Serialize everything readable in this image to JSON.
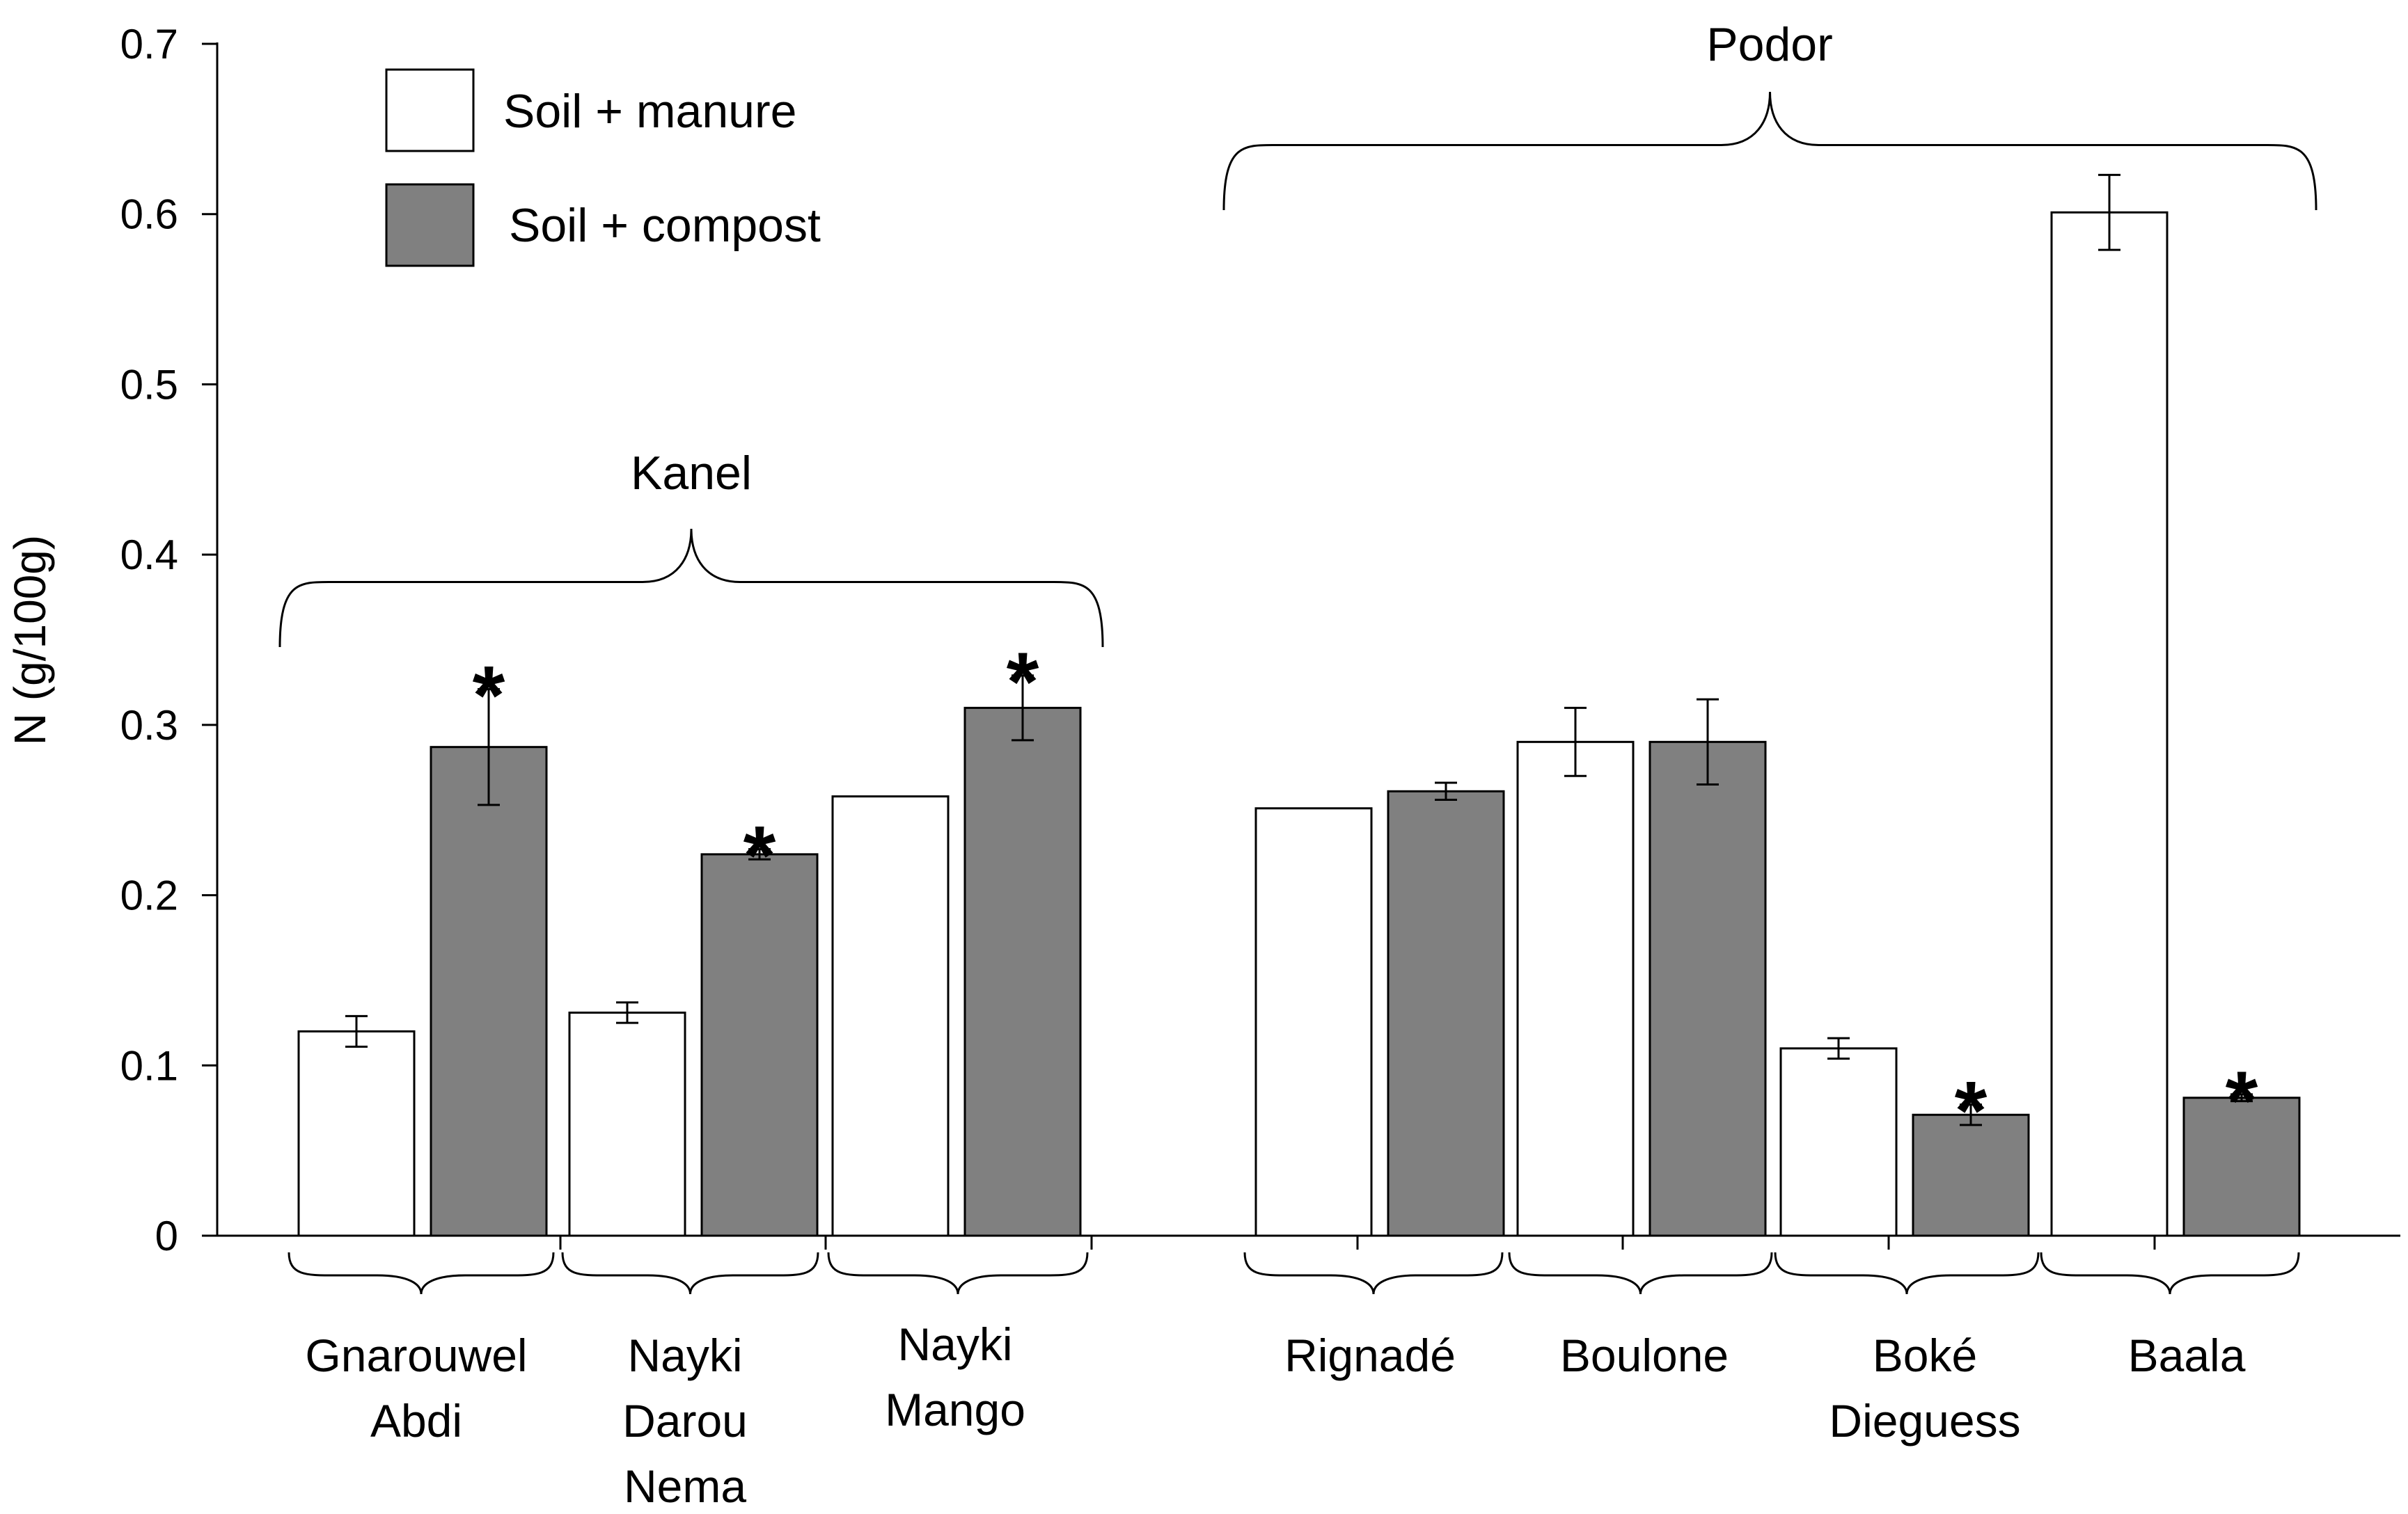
{
  "chart_data": {
    "type": "bar",
    "title": "",
    "xlabel": "",
    "ylabel": "N (g/100g)",
    "ylim": [
      0,
      0.7
    ],
    "yticks": [
      "0",
      "0.1",
      "0.2",
      "0.3",
      "0.4",
      "0.5",
      "0.6",
      "0.7"
    ],
    "grid": false,
    "legend_position": "top-left",
    "categories": [
      [
        "Gnarouwel",
        "Abdi"
      ],
      [
        "Nayki",
        "Darou",
        "Nema"
      ],
      [
        "Nayki",
        "Mango"
      ],
      [
        "Rignadé"
      ],
      [
        "Boulone"
      ],
      [
        "Boké",
        "Dieguess"
      ],
      [
        "Baala"
      ]
    ],
    "category_groups": [
      {
        "label": "Kanel",
        "members": [
          0,
          1,
          2
        ]
      },
      {
        "label": "Podor",
        "members": [
          3,
          4,
          5,
          6
        ]
      }
    ],
    "series": [
      {
        "name": "Soil + manure",
        "color": "#ffffff",
        "values": [
          0.12,
          0.131,
          0.258,
          0.251,
          0.29,
          0.11,
          0.601
        ],
        "errors": [
          0.009,
          0.006,
          0.0,
          0.0,
          0.02,
          0.006,
          0.022
        ],
        "significant": [
          false,
          false,
          false,
          false,
          false,
          false,
          false
        ]
      },
      {
        "name": "Soil + compost",
        "color": "#808080",
        "values": [
          0.287,
          0.224,
          0.31,
          0.261,
          0.29,
          0.071,
          0.081
        ],
        "errors": [
          0.034,
          0.003,
          0.019,
          0.005,
          0.025,
          0.006,
          0.002
        ],
        "significant": [
          true,
          true,
          true,
          false,
          false,
          true,
          true
        ]
      }
    ],
    "significance_marker": "*"
  }
}
